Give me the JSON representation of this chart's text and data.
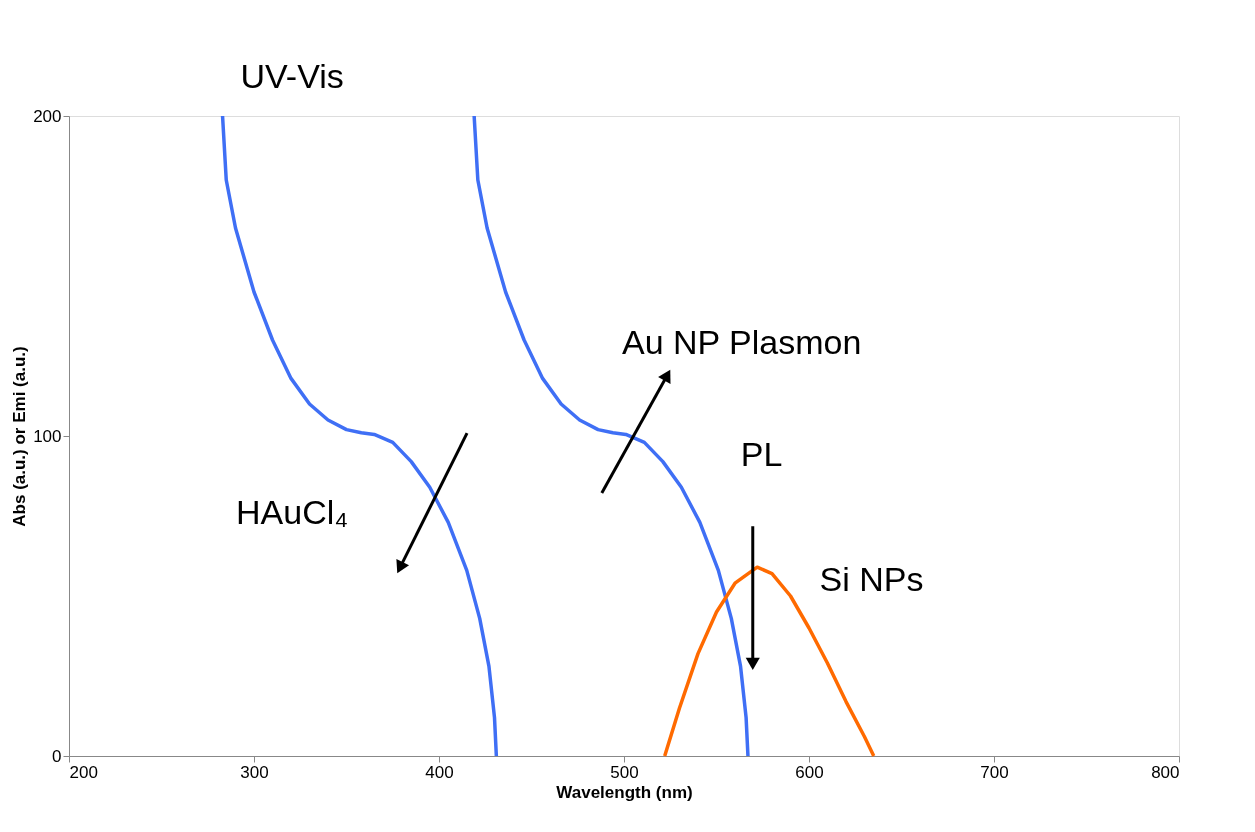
{
  "chart_data": {
    "type": "line",
    "xlabel": "Wavelength (nm)",
    "ylabel": "Abs (a.u.) or Emi (a.u.)",
    "xlim": [
      200,
      800
    ],
    "ylim": [
      0,
      200
    ],
    "xticks": [
      200,
      300,
      400,
      500,
      600,
      700,
      800
    ],
    "yticks": [
      0,
      100,
      200
    ],
    "grid": false,
    "marker": "none",
    "line_style": "solid",
    "series": [
      {
        "name": "HAuCl₄",
        "color": "#3f6ff5",
        "x": [
          283,
          285,
          290,
          300,
          310,
          320,
          330,
          340,
          350,
          358,
          365,
          375,
          385,
          395,
          405,
          415,
          422,
          427,
          430,
          431
        ],
        "values": [
          200,
          180,
          165,
          145,
          130,
          118,
          110,
          105,
          102,
          101,
          100.5,
          98,
          92,
          84,
          73,
          58,
          43,
          28,
          12,
          0
        ]
      },
      {
        "name": "Au NP Plasmon",
        "color": "#3f6ff5",
        "x": [
          419,
          421,
          426,
          436,
          446,
          456,
          466,
          476,
          486,
          494,
          501,
          511,
          521,
          531,
          541,
          551,
          558,
          563,
          566,
          567
        ],
        "values": [
          200,
          180,
          165,
          145,
          130,
          118,
          110,
          105,
          102,
          101,
          100.5,
          98,
          92,
          84,
          73,
          58,
          43,
          28,
          12,
          0
        ]
      },
      {
        "name": "Si NPs",
        "color": "#ff6a00",
        "x": [
          522,
          530,
          540,
          550,
          560,
          572,
          580,
          590,
          600,
          610,
          620,
          630,
          635
        ],
        "values": [
          0,
          15,
          32,
          45,
          54,
          59,
          57,
          50,
          40,
          29,
          17,
          6,
          0
        ]
      }
    ],
    "annotations": [
      "UV-Vis",
      "PL"
    ]
  }
}
